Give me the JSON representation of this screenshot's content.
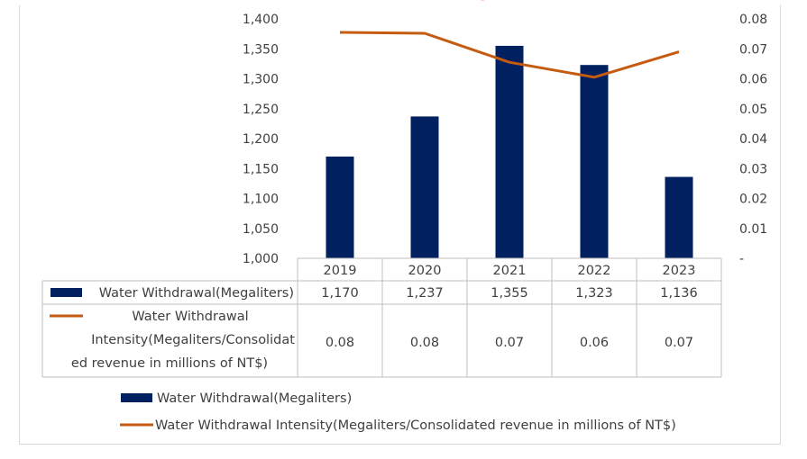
{
  "chart_data": {
    "type": "bar",
    "categories": [
      "2019",
      "2020",
      "2021",
      "2022",
      "2023"
    ],
    "series": [
      {
        "name": "Water Withdrawal(Megaliters)",
        "type": "bar",
        "axis": "left",
        "color": "#002060",
        "values": [
          1170,
          1237,
          1355,
          1323,
          1136
        ],
        "labels": [
          "1,170",
          "1,237",
          "1,355",
          "1,323",
          "1,136"
        ]
      },
      {
        "name": "Water Withdrawal Intensity(Megaliters/Consolidated revenue in millions of NT$)",
        "type": "line",
        "axis": "right",
        "color": "#c55a11",
        "values": [
          0.0755,
          0.0752,
          0.0655,
          0.0605,
          0.069
        ],
        "labels": [
          "0.08",
          "0.08",
          "0.07",
          "0.06",
          "0.07"
        ]
      }
    ],
    "table_label_lines": {
      "bar": [
        "Water Withdrawal(Megaliters)"
      ],
      "line": [
        "Water Withdrawal",
        "Intensity(Megaliters/Consolidat",
        "ed revenue in millions of NT$)"
      ]
    },
    "y_left": {
      "min": 1000,
      "max": 1400,
      "ticks": [
        "1,000",
        "1,050",
        "1,100",
        "1,150",
        "1,200",
        "1,250",
        "1,300",
        "1,350",
        "1,400"
      ]
    },
    "y_right": {
      "min": 0,
      "max": 0.08,
      "ticks": [
        "-",
        "0.01",
        "0.02",
        "0.03",
        "0.04",
        "0.05",
        "0.06",
        "0.07",
        "0.08"
      ]
    },
    "legend_position": "bottom",
    "grid": false,
    "data_table": true
  },
  "colors": {
    "bar": "#002060",
    "line": "#c55a11",
    "title_fragment": "#e6007e"
  }
}
